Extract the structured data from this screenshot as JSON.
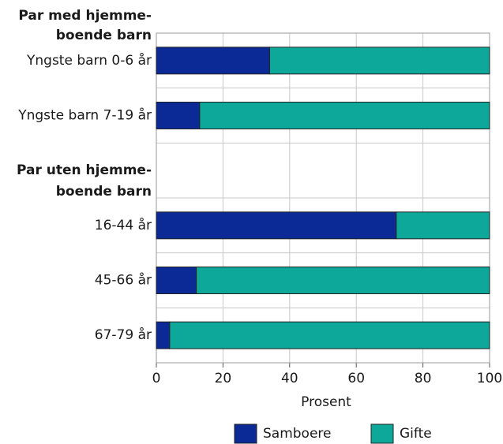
{
  "chart_data": {
    "type": "stacked-bar-horizontal",
    "group_labels": [
      [
        "Par med hjemme-",
        "boende barn"
      ],
      [
        "Par uten hjemme-",
        "boende barn"
      ]
    ],
    "categories": [
      "Yngste barn 0-6 år",
      "Yngste barn 7-19 år",
      null,
      "16-44 år",
      "45-66 år",
      "67-79 år"
    ],
    "series": [
      {
        "name": "Samboere",
        "color": "#0b2a96",
        "values": [
          34,
          13,
          null,
          72,
          12,
          4
        ]
      },
      {
        "name": "Gifte",
        "color": "#0ea89a",
        "values": [
          66,
          87,
          null,
          28,
          88,
          96
        ]
      }
    ],
    "xlim": [
      0,
      100
    ],
    "xticks": [
      0,
      20,
      40,
      60,
      80,
      100
    ],
    "grid": true,
    "xlabel": "Prosent"
  }
}
